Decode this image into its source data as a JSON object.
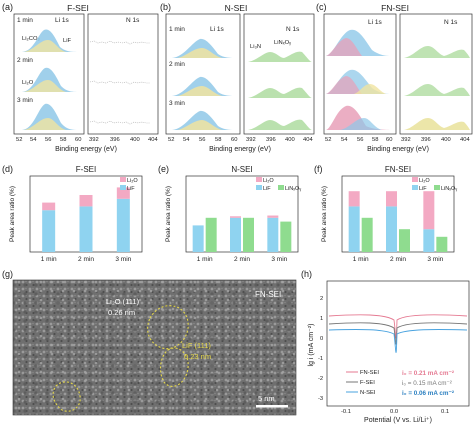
{
  "panels": {
    "a": {
      "letter": "(a)",
      "title": "F-SEI",
      "left_element": "Li 1s",
      "right_element": "N 1s",
      "times": [
        "1 min",
        "2 min",
        "3 min"
      ],
      "species": [
        "Li₂CO₃",
        "LiF",
        "Li₂O"
      ],
      "xticks_left": [
        "52",
        "54",
        "56",
        "58",
        "60"
      ],
      "xticks_right": [
        "392",
        "396",
        "400",
        "404"
      ],
      "xlabel": "Binding energy (eV)"
    },
    "b": {
      "letter": "(b)",
      "title": "N-SEI",
      "left_element": "Li 1s",
      "right_element": "N 1s",
      "times": [
        "1 min",
        "2 min",
        "3 min"
      ],
      "species": [
        "Li₃N",
        "LiNₓOᵧ"
      ],
      "xticks_left": [
        "52",
        "54",
        "56",
        "58",
        "60"
      ],
      "xticks_right": [
        "392",
        "396",
        "400",
        "404"
      ],
      "xlabel": "Binding energy (eV)"
    },
    "c": {
      "letter": "(c)",
      "title": "FN-SEI",
      "left_element": "Li 1s",
      "right_element": "N 1s",
      "xticks_left": [
        "52",
        "54",
        "56",
        "58",
        "60"
      ],
      "xticks_right": [
        "392",
        "396",
        "400",
        "404"
      ],
      "xlabel": "Binding energy (eV)"
    },
    "g": {
      "letter": "(g)",
      "label": "FN-SEI",
      "ann1_a": "Li₂O (111)",
      "ann1_b": "0.26 nm",
      "ann2_a": "LiF (111)",
      "ann2_b": "0.23 nm",
      "scalebar": "5 nm"
    },
    "h": {
      "letter": "(h)",
      "ylabel": "lg i (mA cm⁻²)",
      "xlabel": "Potential (V vs. Li/Li⁺)",
      "yticks": [
        "2",
        "1",
        "0",
        "-1",
        "-2",
        "-3"
      ],
      "xticks": [
        "-0.1",
        "0.0",
        "0.1"
      ],
      "legend": [
        "FN-SEI",
        "F-SEI",
        "N-SEI"
      ],
      "i0": [
        "i₀ = 0.21 mA cm⁻²",
        "i₀ = 0.15 mA cm⁻²",
        "i₀ = 0.06 mA cm⁻²"
      ],
      "colors": [
        "#e57a92",
        "#777777",
        "#4aa3df"
      ]
    }
  },
  "chart_data": [
    {
      "panel": "d",
      "type": "bar",
      "title": "F-SEI",
      "ylabel": "Peak area ratio (%)",
      "categories": [
        "1 min",
        "2 min",
        "3 min"
      ],
      "series": [
        {
          "name": "Li₂O",
          "values": [
            10,
            15,
            15
          ]
        },
        {
          "name": "LiF",
          "values": [
            55,
            60,
            70
          ]
        }
      ],
      "ylim": [
        0,
        100
      ],
      "colors": {
        "Li₂O": "#f3a9c3",
        "LiF": "#8fd3f0"
      }
    },
    {
      "panel": "e",
      "type": "bar",
      "title": "N-SEI",
      "ylabel": "Peak area ratio (%)",
      "categories": [
        "1 min",
        "2 min",
        "3 min"
      ],
      "series": [
        {
          "name": "Li₂O",
          "values": [
            0,
            2,
            3
          ]
        },
        {
          "name": "LiF",
          "values": [
            35,
            45,
            45
          ]
        },
        {
          "name": "LiNₓOᵧ",
          "values": [
            45,
            45,
            40
          ]
        }
      ],
      "ylim": [
        0,
        100
      ],
      "colors": {
        "Li₂O": "#f3a9c3",
        "LiF": "#8fd3f0",
        "LiNₓOᵧ": "#8fdc8f"
      }
    },
    {
      "panel": "f",
      "type": "bar",
      "title": "FN-SEI",
      "ylabel": "Peak area ratio (%)",
      "categories": [
        "1 min",
        "2 min",
        "3 min"
      ],
      "series": [
        {
          "name": "Li₂O",
          "values": [
            20,
            20,
            50
          ]
        },
        {
          "name": "LiF",
          "values": [
            60,
            60,
            30
          ]
        },
        {
          "name": "LiNₓOᵧ",
          "values": [
            45,
            30,
            20
          ]
        }
      ],
      "ylim": [
        0,
        100
      ],
      "colors": {
        "Li₂O": "#f3a9c3",
        "LiF": "#8fd3f0",
        "LiNₓOᵧ": "#8fdc8f"
      }
    }
  ]
}
